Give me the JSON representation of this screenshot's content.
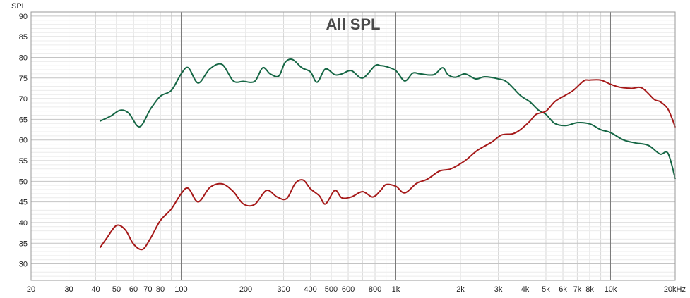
{
  "chart_data": {
    "type": "line",
    "title": "All SPL",
    "ylabel": "SPL",
    "xlabel": "",
    "x_scale": "log",
    "xlim": [
      20,
      20000
    ],
    "ylim": [
      26,
      91
    ],
    "grid": true,
    "x_tick_values": [
      20,
      30,
      40,
      50,
      60,
      70,
      80,
      100,
      200,
      300,
      400,
      500,
      600,
      800,
      1000,
      2000,
      3000,
      4000,
      5000,
      6000,
      7000,
      8000,
      10000,
      20000
    ],
    "x_tick_labels": [
      "20",
      "30",
      "40",
      "50",
      "60",
      "70",
      "80",
      "100",
      "200",
      "300",
      "400",
      "500",
      "600",
      "800",
      "1k",
      "2k",
      "3k",
      "4k",
      "5k",
      "6k",
      "7k",
      "8k",
      "10k",
      "20kHz"
    ],
    "y_tick_values": [
      30,
      35,
      40,
      45,
      50,
      55,
      60,
      65,
      70,
      75,
      80,
      85,
      90
    ],
    "y_tick_labels": [
      "30",
      "35",
      "40",
      "45",
      "50",
      "55",
      "60",
      "65",
      "70",
      "75",
      "80",
      "85",
      "90"
    ],
    "series": [
      {
        "color": "#156644",
        "x": [
          42,
          47,
          52,
          57,
          64,
          72,
          80,
          90,
          100,
          108,
          120,
          136,
          155,
          175,
          195,
          220,
          240,
          260,
          285,
          305,
          330,
          365,
          400,
          430,
          470,
          520,
          560,
          620,
          700,
          800,
          850,
          900,
          1000,
          1100,
          1200,
          1300,
          1500,
          1650,
          1750,
          1900,
          2100,
          2350,
          2600,
          3000,
          3300,
          3800,
          4200,
          4600,
          5000,
          5500,
          6200,
          7000,
          8000,
          9000,
          10000,
          11500,
          13000,
          15000,
          17000,
          18500,
          20000
        ],
        "y": [
          64.6,
          65.8,
          67.2,
          66.5,
          63.2,
          67.5,
          70.6,
          72.0,
          76.0,
          77.5,
          73.8,
          77.2,
          78.3,
          74.3,
          74.2,
          74.2,
          77.5,
          76.0,
          75.5,
          78.8,
          79.5,
          77.5,
          76.5,
          74.0,
          77.2,
          75.8,
          76.0,
          76.8,
          75.0,
          78.0,
          78.0,
          77.8,
          76.8,
          74.3,
          76.2,
          76.0,
          75.8,
          77.5,
          75.8,
          75.2,
          76.0,
          74.8,
          75.3,
          74.8,
          74.0,
          70.8,
          69.3,
          67.3,
          66.2,
          64.0,
          63.5,
          64.2,
          63.9,
          62.5,
          61.8,
          60.0,
          59.3,
          58.7,
          56.6,
          56.8,
          50.7
        ]
      },
      {
        "color": "#a51818",
        "x": [
          42,
          45,
          50,
          55,
          60,
          66,
          72,
          80,
          90,
          100,
          108,
          120,
          136,
          155,
          175,
          195,
          220,
          250,
          280,
          310,
          340,
          370,
          400,
          440,
          470,
          520,
          560,
          620,
          700,
          780,
          850,
          900,
          1000,
          1100,
          1250,
          1400,
          1600,
          1800,
          2100,
          2400,
          2800,
          3100,
          3500,
          3800,
          4200,
          4500,
          5000,
          5500,
          6000,
          6700,
          7500,
          8000,
          9000,
          10000,
          11000,
          12500,
          14000,
          16000,
          17000,
          18500,
          20000
        ],
        "y": [
          34.0,
          36.2,
          39.3,
          38.2,
          34.8,
          33.5,
          36.2,
          40.5,
          43.3,
          47.0,
          48.3,
          45.0,
          48.5,
          49.4,
          47.5,
          44.5,
          44.4,
          47.8,
          46.2,
          45.8,
          49.5,
          50.3,
          48.2,
          46.5,
          44.5,
          47.8,
          46.0,
          46.2,
          47.5,
          46.2,
          47.8,
          49.2,
          48.8,
          47.2,
          49.5,
          50.5,
          52.5,
          53.0,
          55.0,
          57.5,
          59.5,
          61.2,
          61.5,
          62.5,
          64.5,
          66.2,
          67.0,
          69.3,
          70.5,
          72.0,
          74.3,
          74.5,
          74.5,
          73.5,
          72.8,
          72.5,
          72.6,
          69.8,
          69.3,
          67.5,
          63.2
        ]
      }
    ]
  }
}
